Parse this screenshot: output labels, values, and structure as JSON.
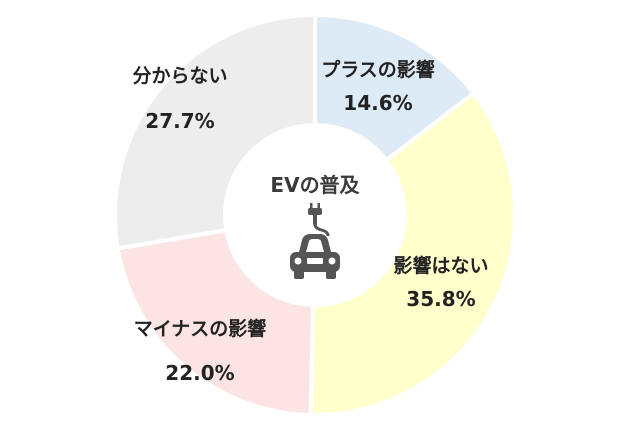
{
  "chart_data": {
    "type": "pie",
    "donut": true,
    "center_title": "EVの普及",
    "center_icon": "electric-car-icon",
    "slices": [
      {
        "label": "プラスの影響",
        "value": 14.6,
        "display": "14.6%",
        "color": "#DDEBF7"
      },
      {
        "label": "影響はない",
        "value": 35.8,
        "display": "35.8%",
        "color": "#FFFFCC"
      },
      {
        "label": "マイナスの影響",
        "value": 22.0,
        "display": "22.0%",
        "color": "#FCE4E4"
      },
      {
        "label": "分からない",
        "value": 27.7,
        "display": "27.7%",
        "color": "#EDEDED"
      }
    ],
    "start_angle_deg": 0,
    "direction": "clockwise",
    "legend": "none"
  }
}
